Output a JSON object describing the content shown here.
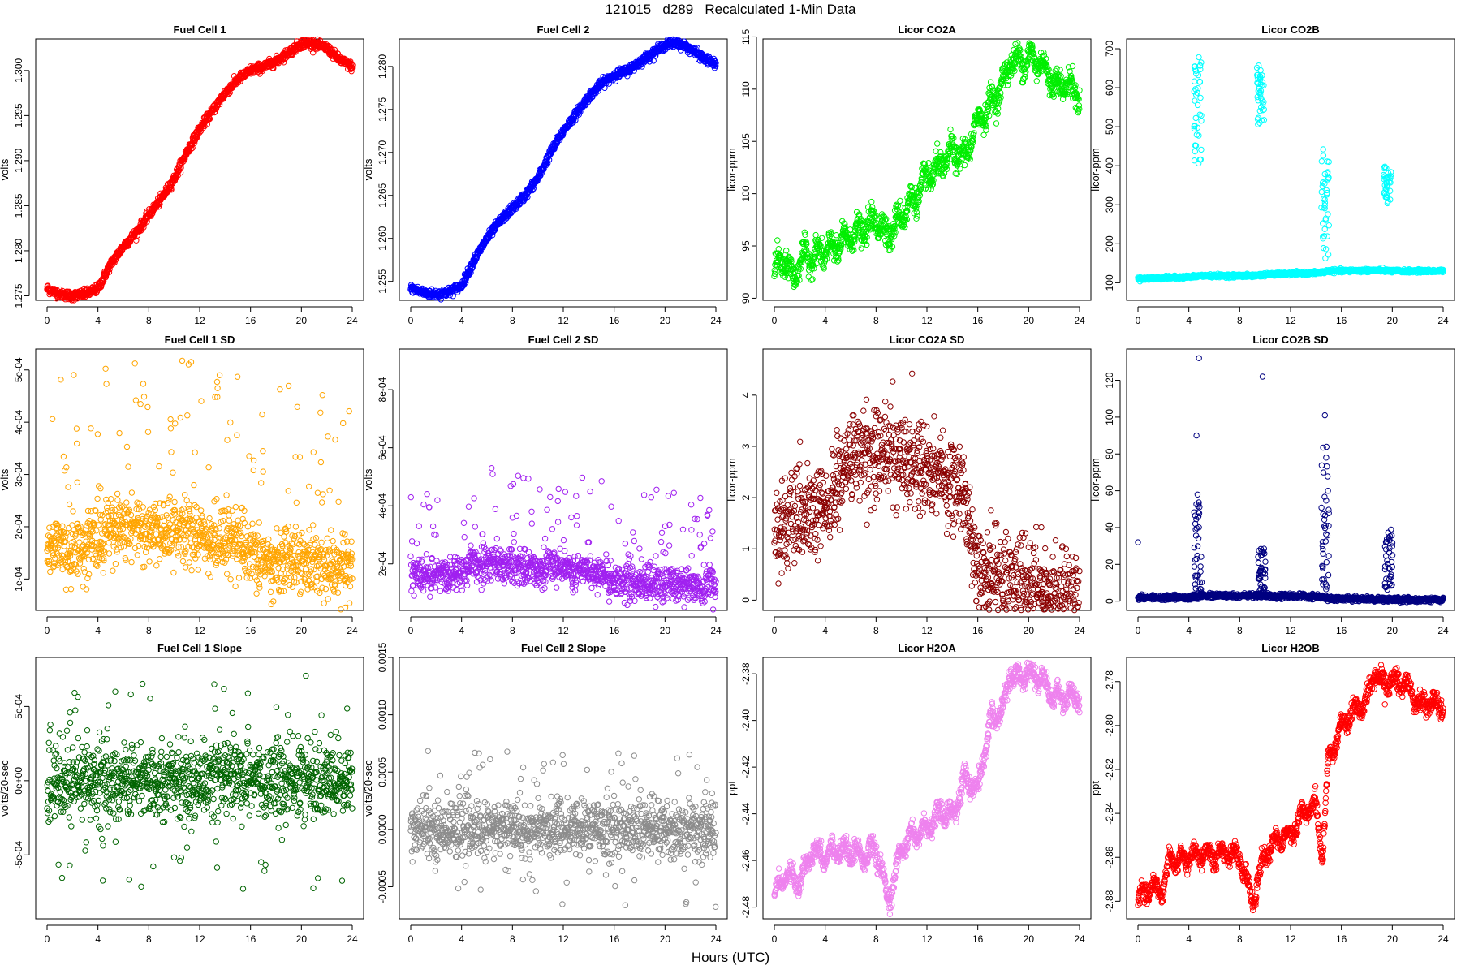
{
  "page": {
    "title": "121015   d289   Recalculated 1-Min Data",
    "xlabel": "Hours (UTC)"
  },
  "chart_data": [
    {
      "type": "scatter",
      "title": "Fuel Cell 1",
      "ylabel": "volts",
      "color": "#ff0000",
      "xlim": [
        0,
        24
      ],
      "ylim": [
        1.2745,
        1.3035
      ],
      "xticks": [
        0,
        4,
        8,
        12,
        16,
        20,
        24
      ],
      "yticks": [
        1.275,
        1.28,
        1.285,
        1.29,
        1.295,
        1.3
      ],
      "ytick_labels": [
        "1.275",
        "1.280",
        "1.285",
        "1.290",
        "1.295",
        "1.300"
      ],
      "noise": 0.00025,
      "curve": [
        [
          0,
          1.2758
        ],
        [
          1,
          1.2752
        ],
        [
          2,
          1.275
        ],
        [
          3,
          1.2752
        ],
        [
          4,
          1.2758
        ],
        [
          5,
          1.2785
        ],
        [
          6,
          1.2805
        ],
        [
          7,
          1.282
        ],
        [
          8,
          1.284
        ],
        [
          9,
          1.2858
        ],
        [
          10,
          1.288
        ],
        [
          11,
          1.291
        ],
        [
          12,
          1.2935
        ],
        [
          13,
          1.2955
        ],
        [
          14,
          1.2975
        ],
        [
          15,
          1.299
        ],
        [
          16,
          1.3
        ],
        [
          17,
          1.3004
        ],
        [
          18,
          1.301
        ],
        [
          19,
          1.302
        ],
        [
          20,
          1.303
        ],
        [
          21,
          1.303
        ],
        [
          22,
          1.3025
        ],
        [
          23,
          1.3012
        ],
        [
          24,
          1.3004
        ]
      ]
    },
    {
      "type": "scatter",
      "title": "Fuel Cell 2",
      "ylabel": "volts",
      "color": "#0000ff",
      "xlim": [
        0,
        24
      ],
      "ylim": [
        1.2528,
        1.2832
      ],
      "xticks": [
        0,
        4,
        8,
        12,
        16,
        20,
        24
      ],
      "yticks": [
        1.255,
        1.26,
        1.265,
        1.27,
        1.275,
        1.28
      ],
      "ytick_labels": [
        "1.255",
        "1.260",
        "1.265",
        "1.270",
        "1.275",
        "1.280"
      ],
      "noise": 0.00025,
      "curve": [
        [
          0,
          1.2542
        ],
        [
          1,
          1.2537
        ],
        [
          2,
          1.2535
        ],
        [
          3,
          1.2538
        ],
        [
          4,
          1.2545
        ],
        [
          5,
          1.2575
        ],
        [
          6,
          1.26
        ],
        [
          7,
          1.262
        ],
        [
          8,
          1.2635
        ],
        [
          9,
          1.265
        ],
        [
          10,
          1.267
        ],
        [
          11,
          1.27
        ],
        [
          12,
          1.2725
        ],
        [
          13,
          1.2745
        ],
        [
          14,
          1.2765
        ],
        [
          15,
          1.278
        ],
        [
          16,
          1.279
        ],
        [
          17,
          1.2795
        ],
        [
          18,
          1.2805
        ],
        [
          19,
          1.2815
        ],
        [
          20,
          1.2825
        ],
        [
          21,
          1.2828
        ],
        [
          22,
          1.282
        ],
        [
          23,
          1.281
        ],
        [
          24,
          1.2802
        ]
      ]
    },
    {
      "type": "scatter",
      "title": "Licor CO2A",
      "ylabel": "licor-ppm",
      "color": "#00ee00",
      "xlim": [
        0,
        24
      ],
      "ylim": [
        89.8,
        114.8
      ],
      "xticks": [
        0,
        4,
        8,
        12,
        16,
        20,
        24
      ],
      "yticks": [
        90,
        95,
        100,
        105,
        110,
        115
      ],
      "ytick_labels": [
        "90",
        "95",
        "100",
        "105",
        "110",
        "115"
      ],
      "noise": 0.6,
      "wobble": 0.8,
      "curve": [
        [
          0,
          93.0
        ],
        [
          1,
          93.5
        ],
        [
          1.5,
          91.5
        ],
        [
          2,
          93.8
        ],
        [
          3,
          94.0
        ],
        [
          4,
          94.5
        ],
        [
          5,
          95.0
        ],
        [
          6,
          96.0
        ],
        [
          7,
          96.5
        ],
        [
          8,
          97.5
        ],
        [
          9,
          96.0
        ],
        [
          10,
          98.0
        ],
        [
          11,
          99.5
        ],
        [
          12,
          101.5
        ],
        [
          13,
          102.5
        ],
        [
          14,
          104.0
        ],
        [
          15,
          103.5
        ],
        [
          16,
          107.0
        ],
        [
          17,
          108.5
        ],
        [
          18,
          110.5
        ],
        [
          18.6,
          113.0
        ],
        [
          19,
          112.5
        ],
        [
          20,
          113.0
        ],
        [
          21,
          112.5
        ],
        [
          22,
          110.5
        ],
        [
          23,
          110.5
        ],
        [
          24,
          109.5
        ]
      ]
    },
    {
      "type": "scatter",
      "title": "Licor CO2B",
      "ylabel": "licor-ppm",
      "color": "#00ffff",
      "xlim": [
        0,
        24
      ],
      "ylim": [
        55,
        725
      ],
      "xticks": [
        0,
        4,
        8,
        12,
        16,
        20,
        24
      ],
      "yticks": [
        100,
        200,
        300,
        400,
        500,
        600,
        700
      ],
      "ytick_labels": [
        "100",
        "200",
        "300",
        "400",
        "500",
        "600",
        "700"
      ],
      "noise": 2.0,
      "curve": [
        [
          0,
          110
        ],
        [
          4,
          115
        ],
        [
          5,
          118
        ],
        [
          9,
          118
        ],
        [
          10,
          121
        ],
        [
          14,
          125
        ],
        [
          15,
          130
        ],
        [
          19,
          132
        ],
        [
          20,
          130
        ],
        [
          24,
          130
        ]
      ],
      "spikes": [
        {
          "x": 4.6,
          "lo": 380,
          "hi": 700
        },
        {
          "x": 9.5,
          "lo": 490,
          "hi": 660
        },
        {
          "x": 14.6,
          "lo": 150,
          "hi": 450
        },
        {
          "x": 19.5,
          "lo": 300,
          "hi": 400
        }
      ]
    },
    {
      "type": "scatter",
      "title": "Fuel Cell 1 SD",
      "ylabel": "volts",
      "color": "#ffa500",
      "xlim": [
        0,
        24
      ],
      "ylim": [
        4e-05,
        0.00054
      ],
      "xticks": [
        0,
        4,
        8,
        12,
        16,
        20,
        24
      ],
      "yticks": [
        0.0001,
        0.0002,
        0.0003,
        0.0004,
        0.0005
      ],
      "ytick_labels": [
        "1e-04",
        "2e-04",
        "3e-04",
        "4e-04",
        "5e-04"
      ],
      "noise": 2e-05,
      "outliers": 0.00045,
      "curve": [
        [
          0,
          0.00015
        ],
        [
          4,
          0.00016
        ],
        [
          5,
          0.0002
        ],
        [
          8,
          0.00019
        ],
        [
          12,
          0.00018
        ],
        [
          15,
          0.00017
        ],
        [
          16,
          0.00014
        ],
        [
          20,
          0.00013
        ],
        [
          24,
          0.000125
        ]
      ]
    },
    {
      "type": "scatter",
      "title": "Fuel Cell 2 SD",
      "ylabel": "volts",
      "color": "#a020f0",
      "xlim": [
        0,
        24
      ],
      "ylim": [
        4e-05,
        0.00094
      ],
      "xticks": [
        0,
        4,
        8,
        12,
        16,
        20,
        24
      ],
      "yticks": [
        0.0002,
        0.0004,
        0.0006,
        0.0008
      ],
      "ytick_labels": [
        "2e-04",
        "4e-04",
        "6e-04",
        "8e-04"
      ],
      "noise": 2e-05,
      "outliers": 0.00045,
      "curve": [
        [
          0,
          0.00016
        ],
        [
          4,
          0.00017
        ],
        [
          5,
          0.0002
        ],
        [
          8,
          0.00019
        ],
        [
          12,
          0.00018
        ],
        [
          15,
          0.00017
        ],
        [
          16,
          0.00014
        ],
        [
          20,
          0.00013
        ],
        [
          24,
          0.00012
        ]
      ]
    },
    {
      "type": "scatter",
      "title": "Licor CO2A SD",
      "ylabel": "licor-ppm",
      "color": "#8b0000",
      "xlim": [
        0,
        24
      ],
      "ylim": [
        -0.2,
        4.9
      ],
      "xticks": [
        0,
        4,
        8,
        12,
        16,
        20,
        24
      ],
      "yticks": [
        0,
        1,
        2,
        3,
        4
      ],
      "ytick_labels": [
        "0",
        "1",
        "2",
        "3",
        "4"
      ],
      "noise": 0.45,
      "curve": [
        [
          0,
          1.4
        ],
        [
          2,
          1.6
        ],
        [
          4,
          1.7
        ],
        [
          5,
          2.3
        ],
        [
          6,
          2.8
        ],
        [
          8,
          2.9
        ],
        [
          10,
          2.8
        ],
        [
          12,
          2.6
        ],
        [
          14,
          2.3
        ],
        [
          15,
          2.0
        ],
        [
          16,
          0.6
        ],
        [
          18,
          0.4
        ],
        [
          20,
          0.25
        ],
        [
          22,
          0.15
        ],
        [
          24,
          0.15
        ]
      ]
    },
    {
      "type": "scatter",
      "title": "Licor CO2B SD",
      "ylabel": "licor-ppm",
      "color": "#000080",
      "xlim": [
        0,
        24
      ],
      "ylim": [
        -5,
        137
      ],
      "xticks": [
        0,
        4,
        8,
        12,
        16,
        20,
        24
      ],
      "yticks": [
        0,
        20,
        40,
        60,
        80,
        100,
        120
      ],
      "ytick_labels": [
        "0",
        "20",
        "40",
        "60",
        "80",
        "100",
        "120"
      ],
      "noise": 0.6,
      "curve": [
        [
          0,
          2
        ],
        [
          4,
          2
        ],
        [
          5,
          3
        ],
        [
          9,
          3
        ],
        [
          10,
          3
        ],
        [
          14,
          2.5
        ],
        [
          15,
          1.5
        ],
        [
          19,
          1
        ],
        [
          20,
          0.8
        ],
        [
          24,
          0.8
        ]
      ],
      "spikes": [
        {
          "x": 4.6,
          "lo": 5,
          "hi": 60
        },
        {
          "x": 9.6,
          "lo": 5,
          "hi": 30
        },
        {
          "x": 14.6,
          "lo": 5,
          "hi": 85
        },
        {
          "x": 19.6,
          "lo": 5,
          "hi": 40
        }
      ],
      "extra_points": [
        [
          0,
          32
        ],
        [
          4.6,
          90
        ],
        [
          4.8,
          132
        ],
        [
          9.8,
          122
        ],
        [
          14.7,
          101
        ]
      ]
    },
    {
      "type": "scatter",
      "title": "Fuel Cell 1 Slope",
      "ylabel": "volts/20-sec",
      "color": "#006400",
      "xlim": [
        0,
        24
      ],
      "ylim": [
        -0.00093,
        0.00083
      ],
      "xticks": [
        0,
        4,
        8,
        12,
        16,
        20,
        24
      ],
      "yticks": [
        -0.0005,
        0,
        0.0005
      ],
      "ytick_labels": [
        "-5e-04",
        "0e+00",
        "5e-04"
      ],
      "noise": 0.00012,
      "outliers": 0.00075,
      "symmetric": true,
      "curve": [
        [
          0,
          0
        ],
        [
          24,
          0
        ]
      ]
    },
    {
      "type": "scatter",
      "title": "Fuel Cell 2 Slope",
      "ylabel": "volts/20-sec",
      "color": "#8c8c8c",
      "xlim": [
        0,
        24
      ],
      "ylim": [
        -0.00078,
        0.0015
      ],
      "xticks": [
        0,
        4,
        8,
        12,
        16,
        20,
        24
      ],
      "yticks": [
        -0.0005,
        0,
        0.0005,
        0.001,
        0.0015
      ],
      "ytick_labels": [
        "-0.0005",
        "0.0000",
        "0.0005",
        "0.0010",
        "0.0015"
      ],
      "noise": 0.00012,
      "outliers": 0.0007,
      "symmetric": true,
      "curve": [
        [
          0,
          0
        ],
        [
          24,
          0
        ]
      ]
    },
    {
      "type": "scatter",
      "title": "Licor H2OA",
      "ylabel": "ppt",
      "color": "#ee82ee",
      "xlim": [
        0,
        24
      ],
      "ylim": [
        -2.485,
        -2.373
      ],
      "xticks": [
        0,
        4,
        8,
        12,
        16,
        20,
        24
      ],
      "yticks": [
        -2.48,
        -2.46,
        -2.44,
        -2.42,
        -2.4,
        -2.38
      ],
      "ytick_labels": [
        "-2.48",
        "-2.46",
        "-2.44",
        "-2.42",
        "-2.40",
        "-2.38"
      ],
      "noise": 0.002,
      "wobble": 0.003,
      "curve": [
        [
          0,
          -2.475
        ],
        [
          1,
          -2.465
        ],
        [
          2,
          -2.47
        ],
        [
          3,
          -2.455
        ],
        [
          4,
          -2.458
        ],
        [
          5,
          -2.455
        ],
        [
          6,
          -2.456
        ],
        [
          7,
          -2.458
        ],
        [
          8,
          -2.455
        ],
        [
          9,
          -2.478
        ],
        [
          10,
          -2.455
        ],
        [
          11,
          -2.448
        ],
        [
          12,
          -2.447
        ],
        [
          13,
          -2.44
        ],
        [
          14,
          -2.44
        ],
        [
          15,
          -2.425
        ],
        [
          16,
          -2.43
        ],
        [
          17,
          -2.4
        ],
        [
          18,
          -2.396
        ],
        [
          18.6,
          -2.378
        ],
        [
          19,
          -2.382
        ],
        [
          20,
          -2.38
        ],
        [
          21,
          -2.382
        ],
        [
          22,
          -2.39
        ],
        [
          23,
          -2.39
        ],
        [
          24,
          -2.39
        ]
      ]
    },
    {
      "type": "scatter",
      "title": "Licor H2OB",
      "ylabel": "ppt",
      "color": "#ff0000",
      "xlim": [
        0,
        24
      ],
      "ylim": [
        -2.888,
        -2.769
      ],
      "xticks": [
        0,
        4,
        8,
        12,
        16,
        20,
        24
      ],
      "yticks": [
        -2.88,
        -2.86,
        -2.84,
        -2.82,
        -2.8,
        -2.78
      ],
      "ytick_labels": [
        "-2.88",
        "-2.86",
        "-2.84",
        "-2.82",
        "-2.80",
        "-2.78"
      ],
      "noise": 0.002,
      "wobble": 0.003,
      "curve": [
        [
          0,
          -2.88
        ],
        [
          1,
          -2.873
        ],
        [
          2,
          -2.875
        ],
        [
          2.5,
          -2.86
        ],
        [
          3,
          -2.862
        ],
        [
          4,
          -2.86
        ],
        [
          5,
          -2.858
        ],
        [
          6,
          -2.86
        ],
        [
          7,
          -2.857
        ],
        [
          8,
          -2.86
        ],
        [
          9,
          -2.88
        ],
        [
          10,
          -2.858
        ],
        [
          11,
          -2.852
        ],
        [
          12,
          -2.85
        ],
        [
          13,
          -2.84
        ],
        [
          14,
          -2.836
        ],
        [
          14.5,
          -2.86
        ],
        [
          15,
          -2.815
        ],
        [
          16,
          -2.8
        ],
        [
          17,
          -2.793
        ],
        [
          18,
          -2.79
        ],
        [
          18.6,
          -2.775
        ],
        [
          19,
          -2.78
        ],
        [
          20,
          -2.78
        ],
        [
          21,
          -2.78
        ],
        [
          22,
          -2.79
        ],
        [
          23,
          -2.79
        ],
        [
          24,
          -2.79
        ]
      ]
    }
  ]
}
